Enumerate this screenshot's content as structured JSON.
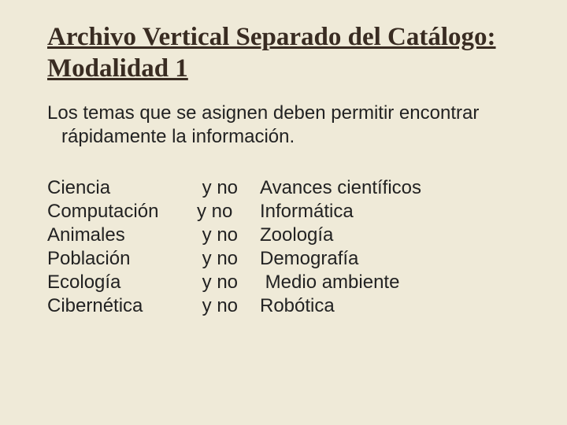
{
  "colors": {
    "background": "#efead8",
    "title": "#392c22",
    "body": "#222222"
  },
  "typography": {
    "title_fontsize": 33,
    "subtitle_fontsize": 24,
    "body_fontsize": 24
  },
  "title": "Archivo Vertical Separado del Catálogo:  Modalidad 1",
  "subtitle": "Los temas que se asignen deben permitir encontrar rápidamente la información.",
  "rows": [
    {
      "left": "Ciencia",
      "mid": " y no",
      "right": "Avances científicos"
    },
    {
      "left": "Computación",
      "mid": "y no",
      "right": "Informática"
    },
    {
      "left": "Animales",
      "mid": " y no",
      "right": "Zoología"
    },
    {
      "left": "Población",
      "mid": " y no",
      "right": "Demografía"
    },
    {
      "left": "Ecología",
      "mid": " y no",
      "right": " Medio ambiente"
    },
    {
      "left": "Cibernética",
      "mid": " y no",
      "right": "Robótica"
    }
  ]
}
